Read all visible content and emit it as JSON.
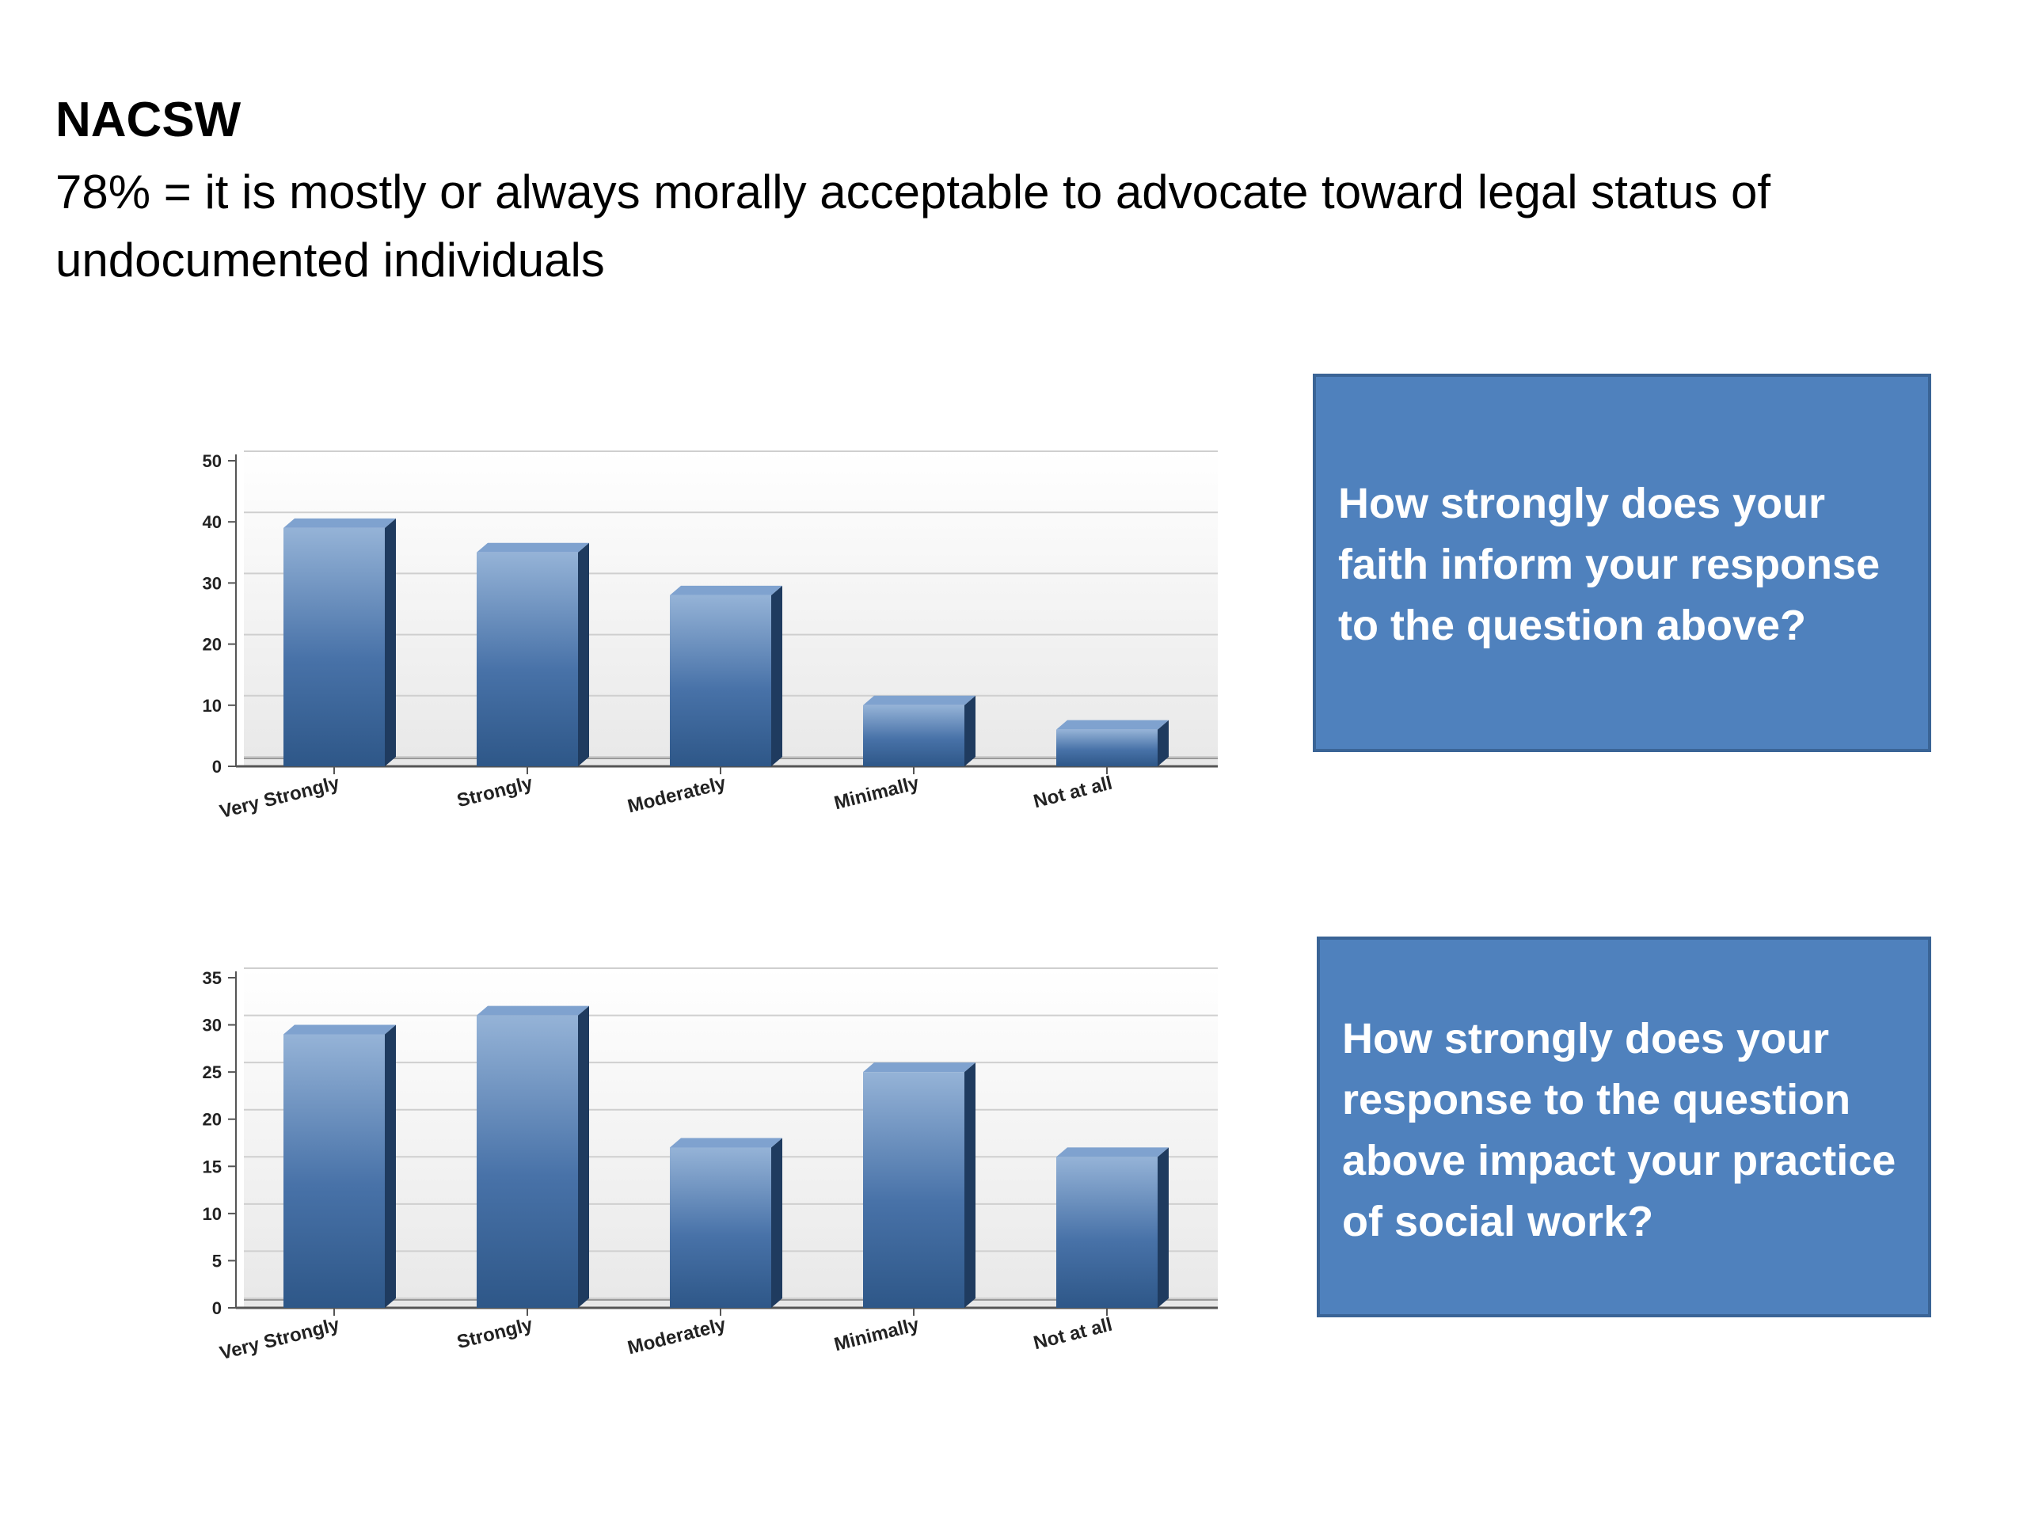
{
  "title": "NACSW",
  "subtitle": "78% = it is mostly or always morally acceptable to advocate toward legal status of undocumented individuals",
  "colors": {
    "bar_front_light": "#95b3d7",
    "bar_front_dark": "#2e5788",
    "bar_side": "#1f3b5f",
    "bar_top": "#7fa2cf",
    "box_fill": "#4f81bd",
    "box_border": "#3a6496"
  },
  "chart_data": [
    {
      "type": "bar",
      "title": "",
      "xlabel": "",
      "ylabel": "",
      "categories": [
        "Very Strongly",
        "Strongly",
        "Moderately",
        "Minimally",
        "Not at all"
      ],
      "values": [
        39,
        35,
        28,
        10,
        6
      ],
      "ylim": [
        0,
        50
      ],
      "yticks": [
        0,
        10,
        20,
        30,
        40,
        50
      ],
      "grid": true,
      "legend": "none"
    },
    {
      "type": "bar",
      "title": "",
      "xlabel": "",
      "ylabel": "",
      "categories": [
        "Very Strongly",
        "Strongly",
        "Moderately",
        "Minimally",
        "Not at all"
      ],
      "values": [
        29,
        31,
        17,
        25,
        16
      ],
      "ylim": [
        0,
        35
      ],
      "yticks": [
        0,
        5,
        10,
        15,
        20,
        25,
        30,
        35
      ],
      "grid": true,
      "legend": "none"
    }
  ],
  "question_boxes": [
    {
      "text": "How strongly does your faith inform your response to the question above?"
    },
    {
      "text": "How strongly does your response to the question above impact your practice of social work?"
    }
  ]
}
